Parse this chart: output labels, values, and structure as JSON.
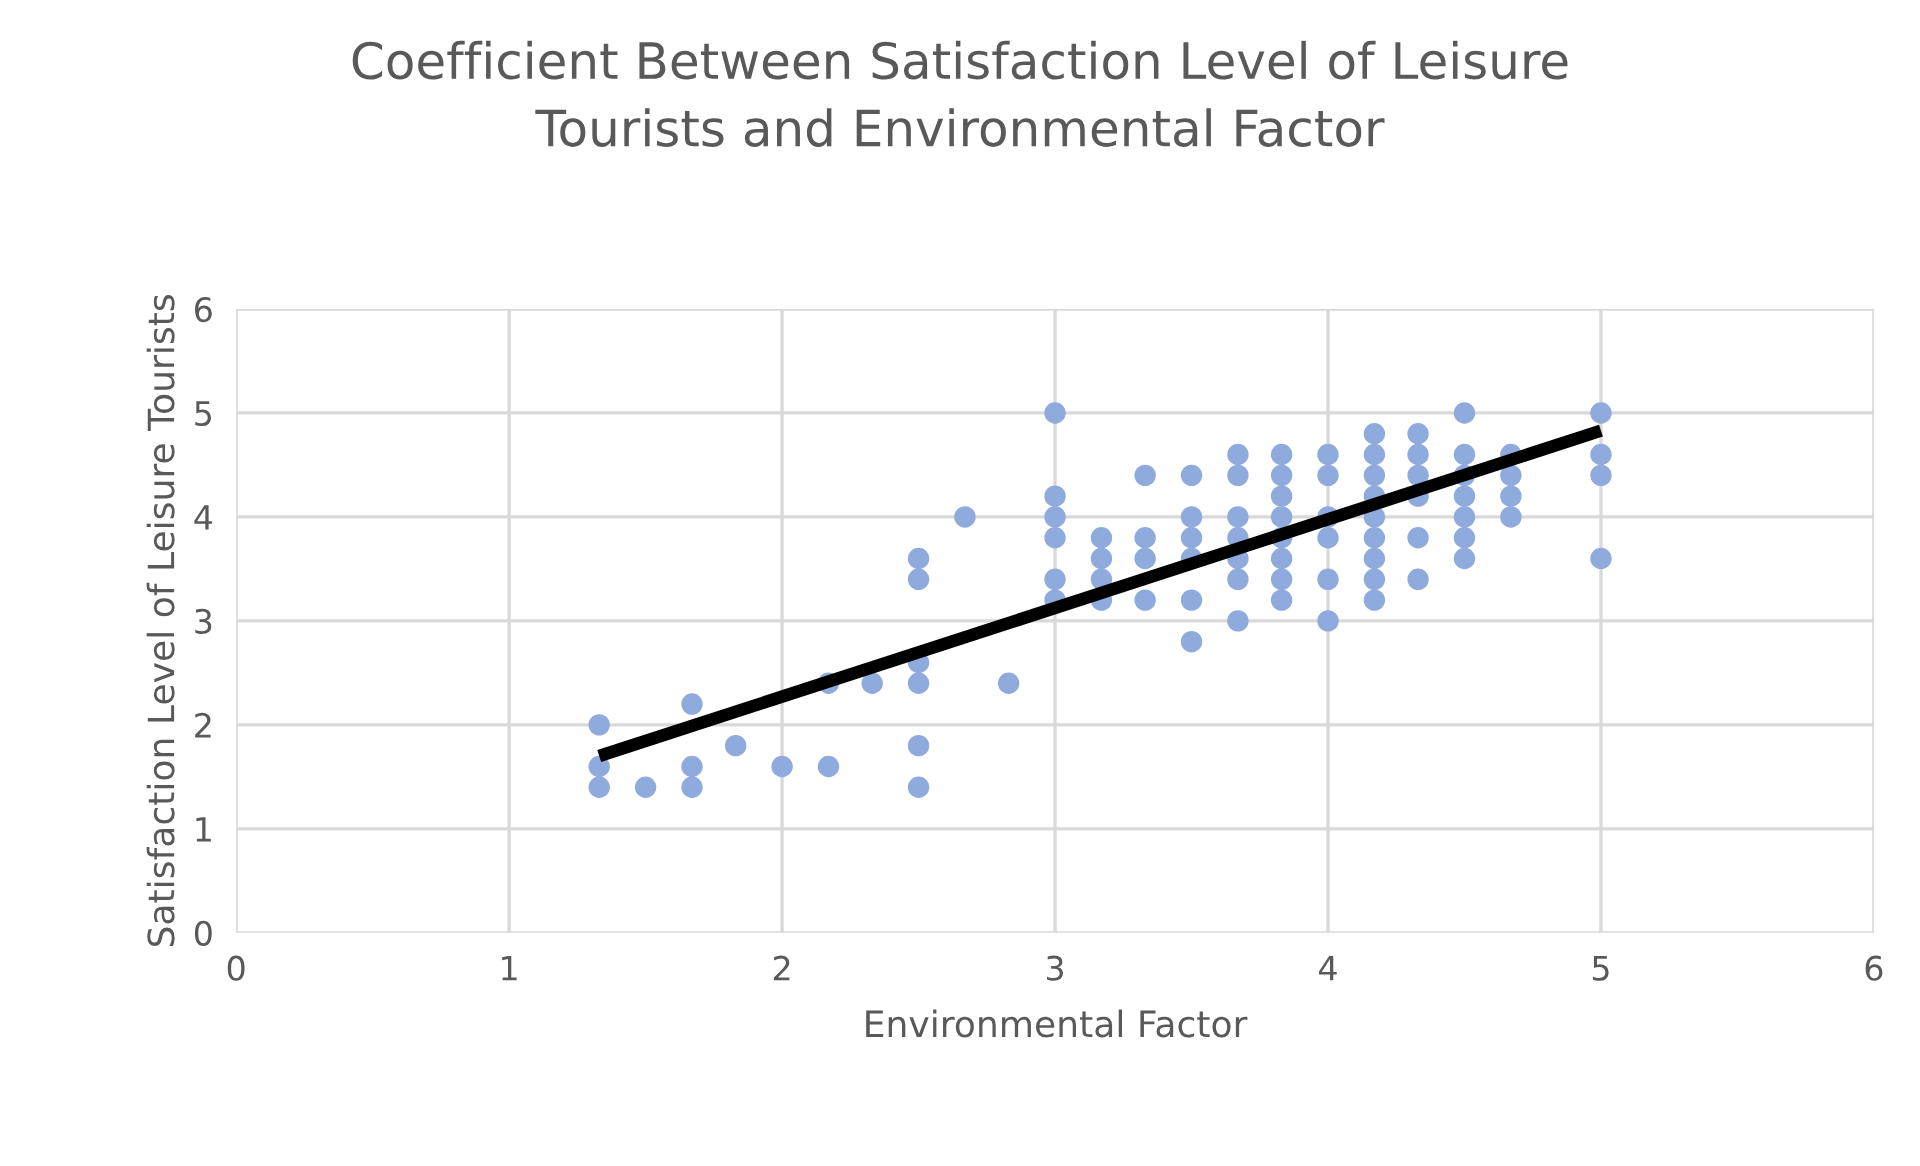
{
  "chart_data": {
    "type": "scatter",
    "title": "Coefficient Between Satisfaction Level of Leisure\nTourists and Environmental Factor",
    "xlabel": "Environmental Factor",
    "ylabel": "Satisfaction Level of Leisure Tourists",
    "xlim": [
      0,
      6
    ],
    "ylim": [
      0,
      6
    ],
    "xticks": [
      0,
      1,
      2,
      3,
      4,
      5,
      6
    ],
    "yticks": [
      0,
      1,
      2,
      3,
      4,
      5,
      6
    ],
    "grid": true,
    "legend": false,
    "marker": "circle",
    "series": [
      {
        "color": "#8faadc",
        "x": [
          1.33,
          1.33,
          1.33,
          1.5,
          1.67,
          1.67,
          1.67,
          1.83,
          2,
          2.17,
          2.17,
          2.33,
          2.5,
          2.5,
          2.5,
          2.5,
          2.5,
          2.5,
          2.67,
          2.83,
          3,
          3,
          3,
          3,
          3,
          3,
          3.17,
          3.17,
          3.17,
          3.17,
          3.33,
          3.33,
          3.33,
          3.33,
          3.5,
          3.5,
          3.5,
          3.5,
          3.5,
          3.5,
          3.67,
          3.67,
          3.67,
          3.67,
          3.67,
          3.67,
          3.67,
          3.83,
          3.83,
          3.83,
          3.83,
          3.83,
          3.83,
          3.83,
          3.83,
          4,
          4,
          4,
          4,
          4,
          4,
          4.17,
          4.17,
          4.17,
          4.17,
          4.17,
          4.17,
          4.17,
          4.17,
          4.17,
          4.33,
          4.33,
          4.33,
          4.33,
          4.33,
          4.33,
          4.5,
          4.5,
          4.5,
          4.5,
          4.5,
          4.5,
          4.5,
          4.67,
          4.67,
          4.67,
          4.67,
          5,
          5,
          5,
          5
        ],
        "values": [
          2.0,
          1.6,
          1.4,
          1.4,
          2.2,
          1.6,
          1.4,
          1.8,
          1.6,
          1.6,
          2.4,
          2.4,
          3.6,
          3.4,
          2.6,
          2.4,
          1.8,
          1.4,
          4.0,
          2.4,
          5.0,
          4.2,
          4.0,
          3.8,
          3.4,
          3.2,
          3.8,
          3.6,
          3.4,
          3.2,
          4.4,
          3.8,
          3.6,
          3.2,
          4.4,
          4.0,
          3.8,
          3.6,
          3.2,
          2.8,
          4.6,
          4.4,
          4.0,
          3.8,
          3.6,
          3.4,
          3.0,
          4.6,
          4.4,
          4.2,
          4.0,
          3.8,
          3.6,
          3.4,
          3.2,
          4.6,
          4.4,
          4.0,
          3.8,
          3.4,
          3.0,
          4.8,
          4.6,
          4.4,
          4.2,
          4.0,
          3.8,
          3.6,
          3.4,
          3.2,
          4.8,
          4.6,
          4.4,
          4.2,
          3.8,
          3.4,
          5.0,
          4.6,
          4.4,
          4.2,
          4.0,
          3.8,
          3.6,
          4.6,
          4.4,
          4.2,
          4.0,
          5.0,
          4.6,
          4.4,
          3.6
        ]
      },
      {
        "type": "line",
        "color": "#000000",
        "marker": "none",
        "x": [
          1.33,
          5
        ],
        "values": [
          1.7,
          4.83
        ]
      }
    ]
  }
}
